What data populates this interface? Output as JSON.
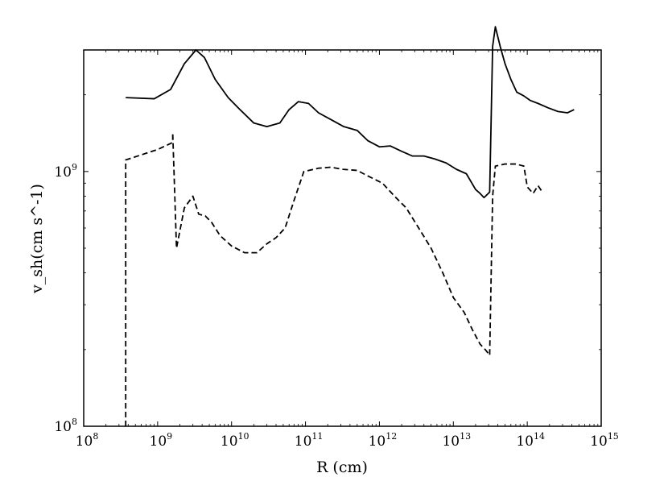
{
  "chart_data": {
    "type": "line",
    "xlabel": "R (cm)",
    "ylabel": "v_sh(cm s^-1)",
    "xscale": "log",
    "yscale": "log",
    "xlim": [
      100000000.0,
      1000000000000000.0
    ],
    "ylim": [
      100000000.0,
      3000000000.0
    ],
    "grid": false,
    "x_tick_labels": [
      {
        "base": "10",
        "exp": "8"
      },
      {
        "base": "10",
        "exp": "9"
      },
      {
        "base": "10",
        "exp": "10"
      },
      {
        "base": "10",
        "exp": "11"
      },
      {
        "base": "10",
        "exp": "12"
      },
      {
        "base": "10",
        "exp": "13"
      },
      {
        "base": "10",
        "exp": "14"
      },
      {
        "base": "10",
        "exp": "15"
      }
    ],
    "y_tick_labels": [
      {
        "base": "10",
        "exp": "8"
      },
      {
        "base": "10",
        "exp": "9"
      }
    ],
    "series": [
      {
        "style": "solid",
        "x": [
          370000000.0,
          900000000.0,
          1500000000.0,
          2300000000.0,
          3300000000.0,
          4300000000.0,
          6000000000.0,
          9000000000.0,
          13000000000.0,
          20000000000.0,
          30000000000.0,
          45000000000.0,
          60000000000.0,
          80000000000.0,
          110000000000.0,
          150000000000.0,
          220000000000.0,
          330000000000.0,
          500000000000.0,
          700000000000.0,
          1000000000000.0,
          1400000000000.0,
          2000000000000.0,
          2800000000000.0,
          4000000000000.0,
          5600000000000.0,
          8000000000000.0,
          11000000000000.0,
          15000000000000.0,
          20000000000000.0,
          23000000000000.0,
          26000000000000.0,
          31000000000000.0,
          34000000000000.0,
          37000000000000.0,
          43000000000000.0,
          50000000000000.0,
          60000000000000.0,
          72000000000000.0,
          90000000000000.0,
          110000000000000.0,
          140000000000000.0,
          190000000000000.0,
          260000000000000.0,
          350000000000000.0,
          430000000000000.0
        ],
        "y": [
          1950000000.0,
          1930000000.0,
          2100000000.0,
          2650000000.0,
          3000000000.0,
          2800000000.0,
          2300000000.0,
          1950000000.0,
          1750000000.0,
          1550000000.0,
          1500000000.0,
          1550000000.0,
          1750000000.0,
          1880000000.0,
          1850000000.0,
          1700000000.0,
          1600000000.0,
          1500000000.0,
          1450000000.0,
          1320000000.0,
          1250000000.0,
          1260000000.0,
          1200000000.0,
          1150000000.0,
          1150000000.0,
          1120000000.0,
          1080000000.0,
          1020000000.0,
          980000000.0,
          850000000.0,
          820000000.0,
          790000000.0,
          830000000.0,
          3100000000.0,
          3700000000.0,
          3100000000.0,
          2650000000.0,
          2300000000.0,
          2050000000.0,
          1980000000.0,
          1900000000.0,
          1850000000.0,
          1780000000.0,
          1720000000.0,
          1700000000.0,
          1750000000.0
        ]
      },
      {
        "style": "dashed",
        "x": [
          370000000.0,
          370000000.0,
          1000000000.0,
          1600000000.0,
          1600000000.0,
          1800000000.0,
          2300000000.0,
          3000000000.0,
          3600000000.0,
          4400000000.0,
          5400000000.0,
          7000000000.0,
          10000000000.0,
          15000000000.0,
          22000000000.0,
          30000000000.0,
          40000000000.0,
          53000000000.0,
          70000000000.0,
          95000000000.0,
          150000000000.0,
          220000000000.0,
          320000000000.0,
          500000000000.0,
          700000000000.0,
          1100000000000.0,
          1600000000000.0,
          2300000000000.0,
          3400000000000.0,
          5000000000000.0,
          7200000000000.0,
          10000000000000.0,
          14000000000000.0,
          18000000000000.0,
          23000000000000.0,
          27000000000000.0,
          31000000000000.0,
          34000000000000.0,
          37000000000000.0,
          50000000000000.0,
          70000000000000.0,
          90000000000000.0,
          100000000000000.0,
          120000000000000.0,
          140000000000000.0,
          160000000000000.0
        ],
        "y": [
          100000000.0,
          1110000000.0,
          1220000000.0,
          1300000000.0,
          1420000000.0,
          500000000.0,
          720000000.0,
          800000000.0,
          680000000.0,
          670000000.0,
          630000000.0,
          560000000.0,
          510000000.0,
          480000000.0,
          480000000.0,
          520000000.0,
          550000000.0,
          600000000.0,
          770000000.0,
          1000000000.0,
          1030000000.0,
          1040000000.0,
          1020000000.0,
          1010000000.0,
          960000000.0,
          900000000.0,
          800000000.0,
          720000000.0,
          600000000.0,
          500000000.0,
          400000000.0,
          320000000.0,
          280000000.0,
          240000000.0,
          210000000.0,
          200000000.0,
          190000000.0,
          800000000.0,
          1050000000.0,
          1070000000.0,
          1070000000.0,
          1050000000.0,
          870000000.0,
          820000000.0,
          880000000.0,
          830000000.0
        ]
      }
    ]
  }
}
